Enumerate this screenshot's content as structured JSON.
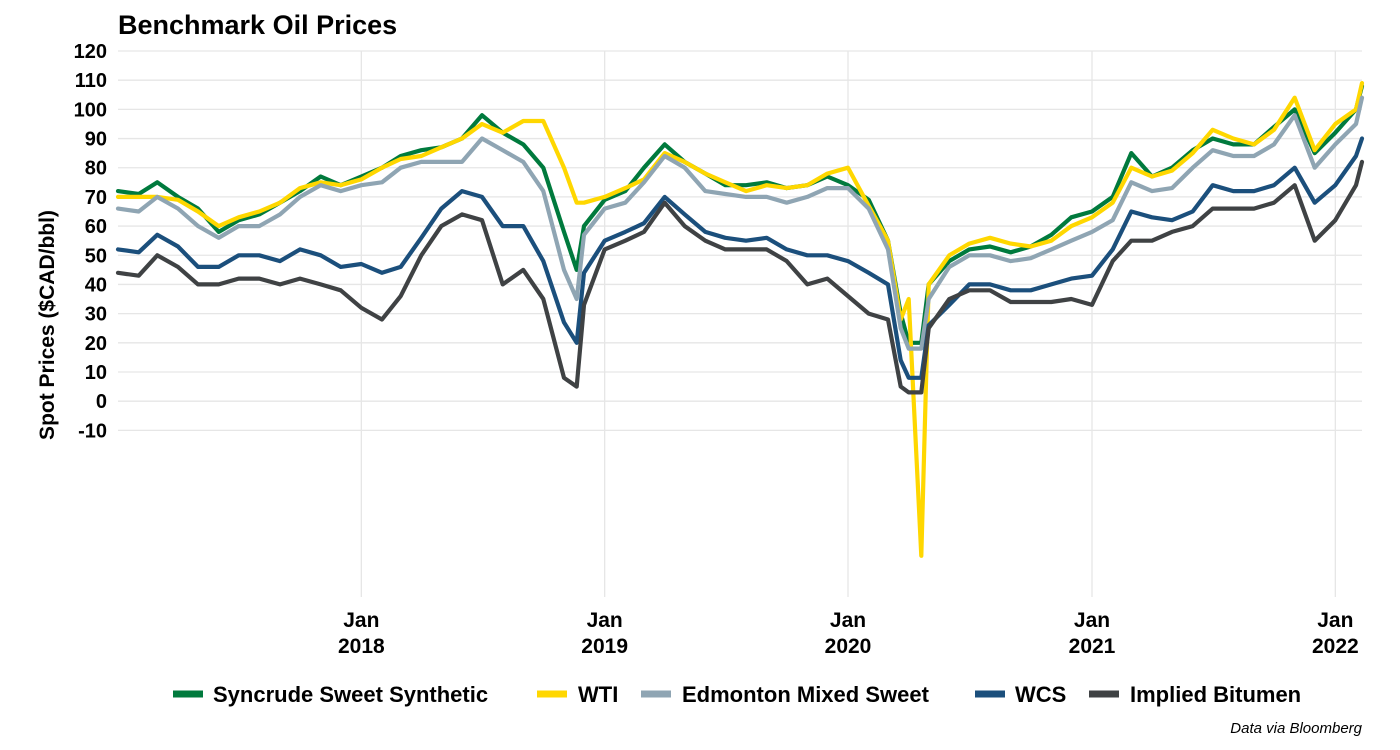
{
  "chart_data": {
    "type": "line",
    "title": "Benchmark Oil Prices",
    "xlabel": "",
    "ylabel": "Spot Prices ($CAD/bbl)",
    "caption": "Data via Bloomberg",
    "x_range": [
      "2017-01-01",
      "2022-02-10"
    ],
    "ylim": [
      -10,
      120
    ],
    "y_display_min": -63,
    "yticks": [
      "120",
      "110",
      "100",
      "90",
      "80",
      "70",
      "60",
      "50",
      "40",
      "30",
      "20",
      "10",
      "0",
      "-10"
    ],
    "xticks": [
      {
        "date": "2018-01-01",
        "line1": "Jan",
        "line2": "2018"
      },
      {
        "date": "2019-01-01",
        "line1": "Jan",
        "line2": "2019"
      },
      {
        "date": "2020-01-01",
        "line1": "Jan",
        "line2": "2020"
      },
      {
        "date": "2021-01-01",
        "line1": "Jan",
        "line2": "2021"
      },
      {
        "date": "2022-01-01",
        "line1": "Jan",
        "line2": "2022"
      }
    ],
    "grid": true,
    "legend_position": "bottom",
    "x": [
      "2017-01-01",
      "2017-02-01",
      "2017-03-01",
      "2017-04-01",
      "2017-05-01",
      "2017-06-01",
      "2017-07-01",
      "2017-08-01",
      "2017-09-01",
      "2017-10-01",
      "2017-11-01",
      "2017-12-01",
      "2018-01-01",
      "2018-02-01",
      "2018-03-01",
      "2018-04-01",
      "2018-05-01",
      "2018-06-01",
      "2018-07-01",
      "2018-08-01",
      "2018-09-01",
      "2018-10-01",
      "2018-11-01",
      "2018-11-20",
      "2018-12-01",
      "2019-01-01",
      "2019-02-01",
      "2019-03-01",
      "2019-04-01",
      "2019-05-01",
      "2019-06-01",
      "2019-07-01",
      "2019-08-01",
      "2019-09-01",
      "2019-10-01",
      "2019-11-01",
      "2019-12-01",
      "2020-01-01",
      "2020-02-01",
      "2020-03-01",
      "2020-03-20",
      "2020-04-01",
      "2020-04-20",
      "2020-05-01",
      "2020-06-01",
      "2020-07-01",
      "2020-08-01",
      "2020-09-01",
      "2020-10-01",
      "2020-11-01",
      "2020-12-01",
      "2021-01-01",
      "2021-02-01",
      "2021-03-01",
      "2021-04-01",
      "2021-05-01",
      "2021-06-01",
      "2021-07-01",
      "2021-08-01",
      "2021-09-01",
      "2021-10-01",
      "2021-11-01",
      "2021-12-01",
      "2022-01-01",
      "2022-02-01",
      "2022-02-10"
    ],
    "series": [
      {
        "name": "Syncrude Sweet Synthetic",
        "color": "#007a3d",
        "values": [
          72,
          71,
          75,
          70,
          66,
          58,
          62,
          64,
          68,
          72,
          77,
          74,
          77,
          80,
          84,
          86,
          87,
          90,
          98,
          92,
          88,
          80,
          58,
          45,
          60,
          69,
          72,
          80,
          88,
          82,
          78,
          74,
          74,
          75,
          73,
          74,
          77,
          74,
          69,
          55,
          30,
          20,
          20,
          40,
          48,
          52,
          53,
          51,
          53,
          57,
          63,
          65,
          70,
          85,
          77,
          80,
          86,
          90,
          88,
          88,
          94,
          100,
          85,
          92,
          100,
          108
        ]
      },
      {
        "name": "WTI",
        "color": "#ffd700",
        "values": [
          70,
          70,
          70,
          69,
          65,
          60,
          63,
          65,
          68,
          73,
          75,
          74,
          76,
          80,
          83,
          84,
          87,
          90,
          95,
          92,
          96,
          96,
          80,
          68,
          68,
          70,
          73,
          76,
          85,
          82,
          78,
          75,
          72,
          74,
          73,
          74,
          78,
          80,
          67,
          55,
          28,
          35,
          -53,
          40,
          50,
          54,
          56,
          54,
          53,
          55,
          60,
          63,
          68,
          80,
          77,
          79,
          85,
          93,
          90,
          88,
          93,
          104,
          86,
          95,
          100,
          109
        ]
      },
      {
        "name": "Edmonton Mixed Sweet",
        "color": "#8fa5b3",
        "values": [
          66,
          65,
          70,
          66,
          60,
          56,
          60,
          60,
          64,
          70,
          74,
          72,
          74,
          75,
          80,
          82,
          82,
          82,
          90,
          86,
          82,
          72,
          45,
          35,
          57,
          66,
          68,
          75,
          84,
          80,
          72,
          71,
          70,
          70,
          68,
          70,
          73,
          73,
          66,
          52,
          25,
          18,
          18,
          35,
          46,
          50,
          50,
          48,
          49,
          52,
          55,
          58,
          62,
          75,
          72,
          73,
          80,
          86,
          84,
          84,
          88,
          98,
          80,
          88,
          95,
          104
        ]
      },
      {
        "name": "WCS",
        "color": "#1b4f7c",
        "values": [
          52,
          51,
          57,
          53,
          46,
          46,
          50,
          50,
          48,
          52,
          50,
          46,
          47,
          44,
          46,
          56,
          66,
          72,
          70,
          60,
          60,
          48,
          27,
          20,
          44,
          55,
          58,
          61,
          70,
          64,
          58,
          56,
          55,
          56,
          52,
          50,
          50,
          48,
          44,
          40,
          14,
          8,
          8,
          26,
          33,
          40,
          40,
          38,
          38,
          40,
          42,
          43,
          52,
          65,
          63,
          62,
          65,
          74,
          72,
          72,
          74,
          80,
          68,
          74,
          84,
          90
        ]
      },
      {
        "name": "Implied Bitumen",
        "color": "#3f4244",
        "values": [
          44,
          43,
          50,
          46,
          40,
          40,
          42,
          42,
          40,
          42,
          40,
          38,
          32,
          28,
          36,
          50,
          60,
          64,
          62,
          40,
          45,
          35,
          8,
          5,
          33,
          52,
          55,
          58,
          68,
          60,
          55,
          52,
          52,
          52,
          48,
          40,
          42,
          36,
          30,
          28,
          5,
          3,
          3,
          25,
          35,
          38,
          38,
          34,
          34,
          34,
          35,
          33,
          48,
          55,
          55,
          58,
          60,
          66,
          66,
          66,
          68,
          74,
          55,
          62,
          74,
          82
        ]
      }
    ]
  }
}
